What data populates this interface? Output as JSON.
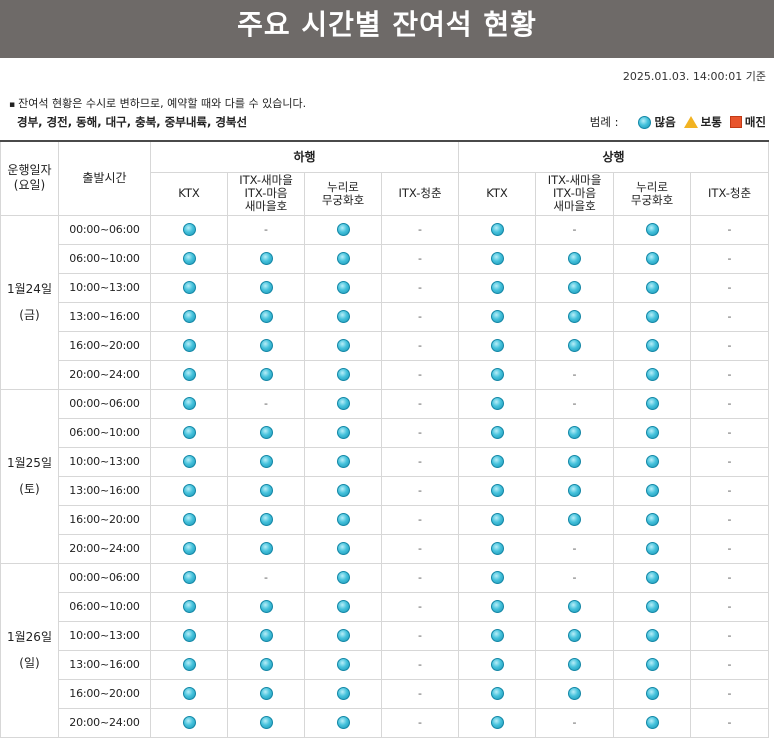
{
  "header": {
    "title": "주요 시간별 잔여석 현황"
  },
  "timestamp": "2025.01.03. 14:00:01 기준",
  "notice": "잔여석 현황은 수시로 변하므로, 예약할 때와 다를 수 있습니다.",
  "routes": "경부, 경전, 동해, 대구, 충북, 중부내륙, 경북선",
  "legend": {
    "title": "범례 :",
    "items": [
      {
        "label": "많음",
        "icon": "circle-icon",
        "color": "#2fb1cf"
      },
      {
        "label": "보통",
        "icon": "triangle-icon",
        "color": "#f2b322"
      },
      {
        "label": "매진",
        "icon": "square-icon",
        "color": "#e8542c"
      }
    ]
  },
  "table": {
    "col_date": "운행일자\n(요일)",
    "col_time": "출발시간",
    "directions": [
      "하행",
      "상행"
    ],
    "train_types": [
      "KTX",
      "ITX-새마을\nITX-마음\n새마을호",
      "누리로\n무궁화호",
      "ITX-청춘"
    ],
    "dash": "-",
    "days": [
      {
        "date": "1월24일",
        "weekday": "(금)",
        "rows": [
          {
            "time": "00:00~06:00",
            "down": [
              "o",
              "-",
              "o",
              "-"
            ],
            "up": [
              "o",
              "-",
              "o",
              "-"
            ]
          },
          {
            "time": "06:00~10:00",
            "down": [
              "o",
              "o",
              "o",
              "-"
            ],
            "up": [
              "o",
              "o",
              "o",
              "-"
            ]
          },
          {
            "time": "10:00~13:00",
            "down": [
              "o",
              "o",
              "o",
              "-"
            ],
            "up": [
              "o",
              "o",
              "o",
              "-"
            ]
          },
          {
            "time": "13:00~16:00",
            "down": [
              "o",
              "o",
              "o",
              "-"
            ],
            "up": [
              "o",
              "o",
              "o",
              "-"
            ]
          },
          {
            "time": "16:00~20:00",
            "down": [
              "o",
              "o",
              "o",
              "-"
            ],
            "up": [
              "o",
              "o",
              "o",
              "-"
            ]
          },
          {
            "time": "20:00~24:00",
            "down": [
              "o",
              "o",
              "o",
              "-"
            ],
            "up": [
              "o",
              "-",
              "o",
              "-"
            ]
          }
        ]
      },
      {
        "date": "1월25일",
        "weekday": "(토)",
        "rows": [
          {
            "time": "00:00~06:00",
            "down": [
              "o",
              "-",
              "o",
              "-"
            ],
            "up": [
              "o",
              "-",
              "o",
              "-"
            ]
          },
          {
            "time": "06:00~10:00",
            "down": [
              "o",
              "o",
              "o",
              "-"
            ],
            "up": [
              "o",
              "o",
              "o",
              "-"
            ]
          },
          {
            "time": "10:00~13:00",
            "down": [
              "o",
              "o",
              "o",
              "-"
            ],
            "up": [
              "o",
              "o",
              "o",
              "-"
            ]
          },
          {
            "time": "13:00~16:00",
            "down": [
              "o",
              "o",
              "o",
              "-"
            ],
            "up": [
              "o",
              "o",
              "o",
              "-"
            ]
          },
          {
            "time": "16:00~20:00",
            "down": [
              "o",
              "o",
              "o",
              "-"
            ],
            "up": [
              "o",
              "o",
              "o",
              "-"
            ]
          },
          {
            "time": "20:00~24:00",
            "down": [
              "o",
              "o",
              "o",
              "-"
            ],
            "up": [
              "o",
              "-",
              "o",
              "-"
            ]
          }
        ]
      },
      {
        "date": "1월26일",
        "weekday": "(일)",
        "rows": [
          {
            "time": "00:00~06:00",
            "down": [
              "o",
              "-",
              "o",
              "-"
            ],
            "up": [
              "o",
              "-",
              "o",
              "-"
            ]
          },
          {
            "time": "06:00~10:00",
            "down": [
              "o",
              "o",
              "o",
              "-"
            ],
            "up": [
              "o",
              "o",
              "o",
              "-"
            ]
          },
          {
            "time": "10:00~13:00",
            "down": [
              "o",
              "o",
              "o",
              "-"
            ],
            "up": [
              "o",
              "o",
              "o",
              "-"
            ]
          },
          {
            "time": "13:00~16:00",
            "down": [
              "o",
              "o",
              "o",
              "-"
            ],
            "up": [
              "o",
              "o",
              "o",
              "-"
            ]
          },
          {
            "time": "16:00~20:00",
            "down": [
              "o",
              "o",
              "o",
              "-"
            ],
            "up": [
              "o",
              "o",
              "o",
              "-"
            ]
          },
          {
            "time": "20:00~24:00",
            "down": [
              "o",
              "o",
              "o",
              "-"
            ],
            "up": [
              "o",
              "-",
              "o",
              "-"
            ]
          }
        ]
      }
    ]
  }
}
